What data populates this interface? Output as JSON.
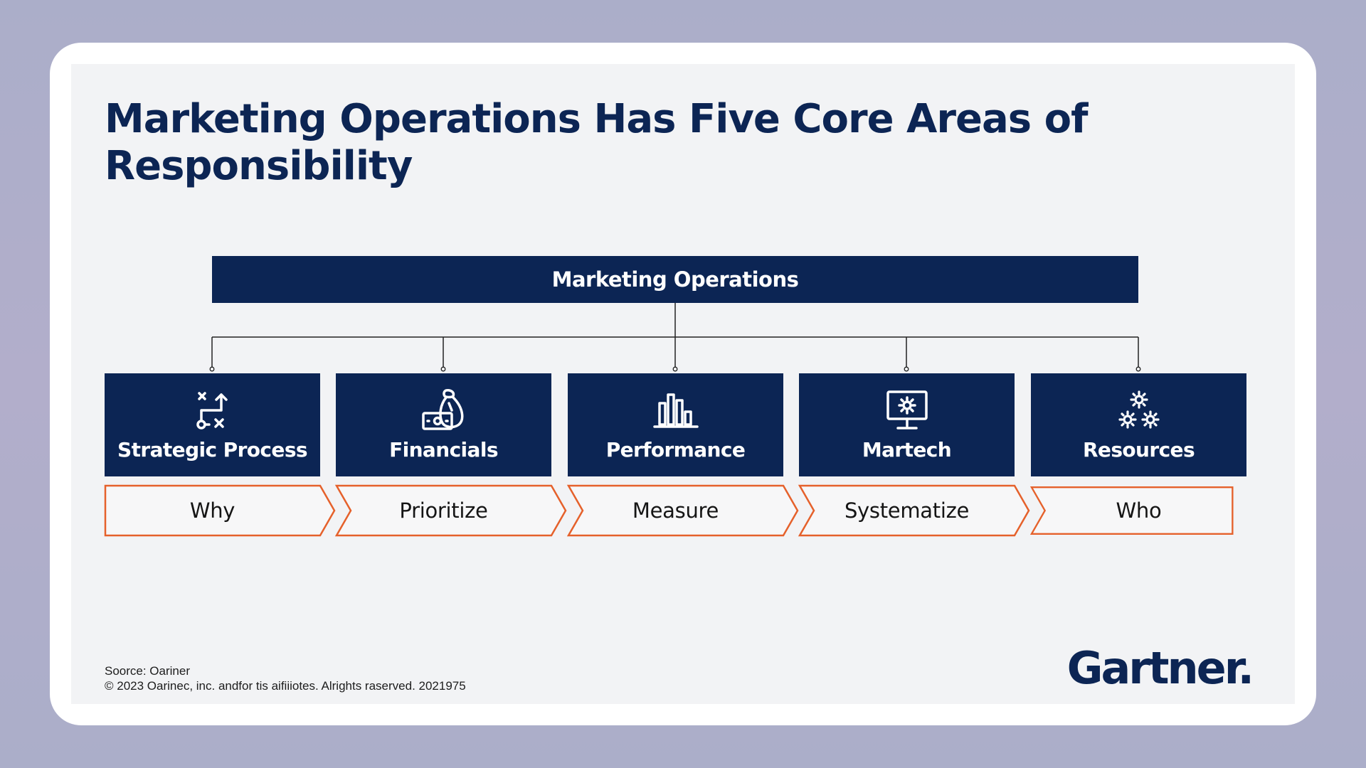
{
  "title": "Marketing Operations Has Five Core Areas of Responsibility",
  "root": {
    "label": "Marketing Operations"
  },
  "areas": [
    {
      "label": "Strategic Process",
      "icon": "strategy-icon",
      "role": "Why"
    },
    {
      "label": "Financials",
      "icon": "money-bag-icon",
      "role": "Prioritize"
    },
    {
      "label": "Performance",
      "icon": "bar-chart-icon",
      "role": "Measure"
    },
    {
      "label": "Martech",
      "icon": "monitor-gear-icon",
      "role": "Systematize"
    },
    {
      "label": "Resources",
      "icon": "gears-icon",
      "role": "Who"
    }
  ],
  "footer": {
    "source": "Soorce: Oariner",
    "copyright": "© 2023 Oarinec, inc. andfor tis aifiiiotes. Alrights raserved. 2021975"
  },
  "logo": {
    "text": "Gartner."
  },
  "colors": {
    "navy": "#0c2554",
    "orange": "#e5612b",
    "background": "#f2f3f5"
  }
}
